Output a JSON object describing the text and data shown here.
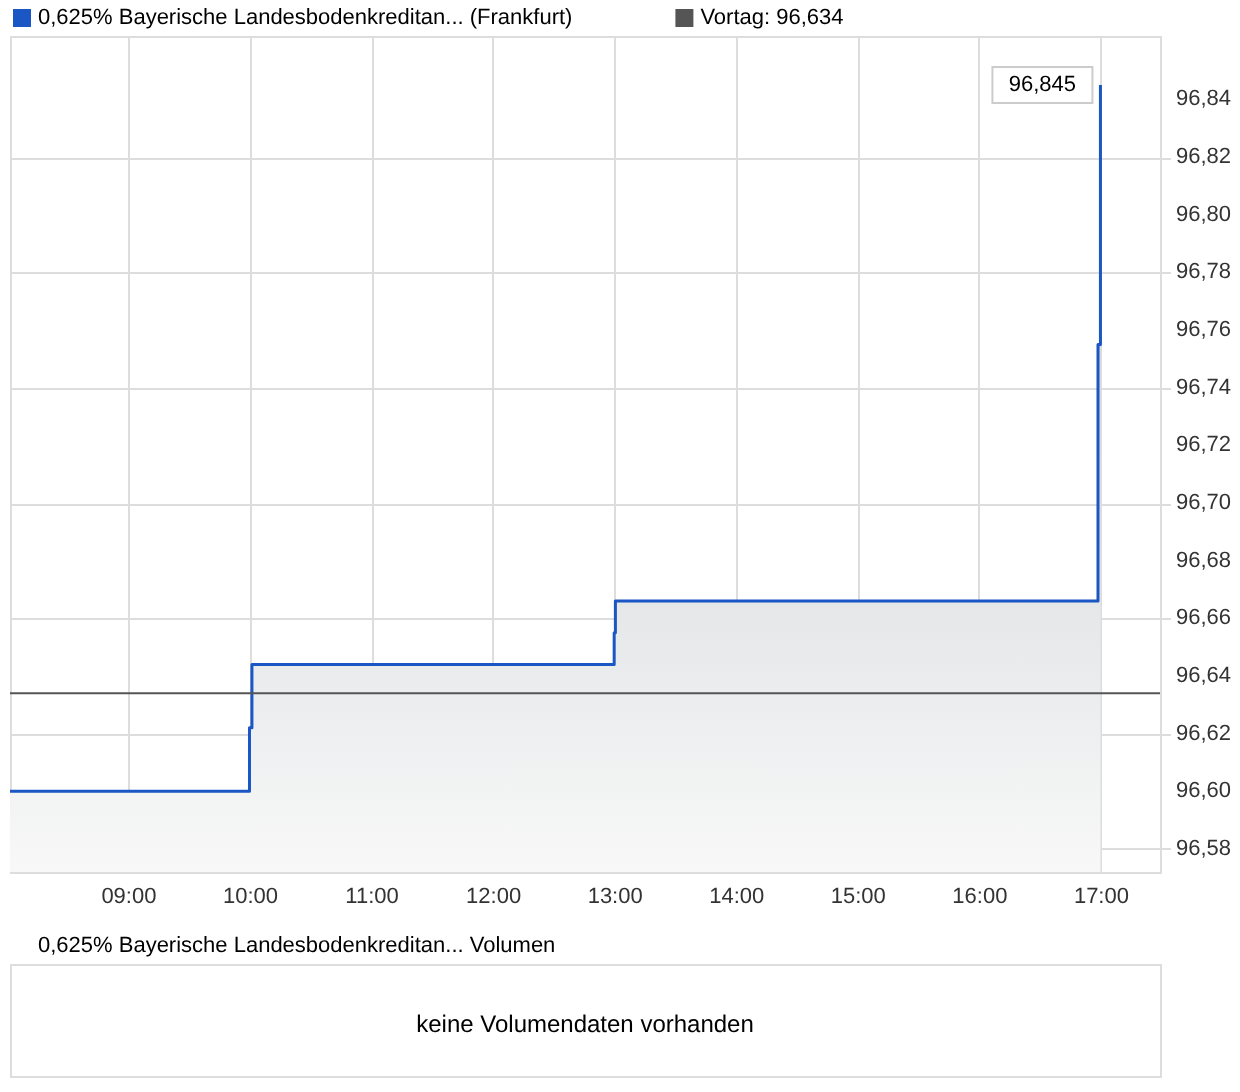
{
  "chart_data": [
    {
      "type": "area",
      "legend": "top left",
      "grid": true,
      "series": [
        {
          "name": "0,625% Bayerische Landesbodenkreditan... (Frankfurt)",
          "color": "#1a56c4",
          "x": [
            8.03,
            10.0,
            10.0,
            10.02,
            10.02,
            13.0,
            13.0,
            13.01,
            13.01,
            16.98,
            16.98,
            17.0,
            17.0
          ],
          "values": [
            96.6,
            96.6,
            96.622,
            96.622,
            96.644,
            96.644,
            96.655,
            96.655,
            96.666,
            96.666,
            96.755,
            96.755,
            96.845
          ]
        }
      ],
      "ref_lines": [
        {
          "axis": "y",
          "value": 96.634,
          "label": "Vortag: 96,634",
          "color": "#555555"
        }
      ],
      "annotations": [
        {
          "text": "96,845",
          "x": 17.0,
          "y": 96.845
        }
      ],
      "xlim": [
        8.03,
        17.49
      ],
      "xticks": [
        {
          "value": 9,
          "label": "09:00"
        },
        {
          "value": 10,
          "label": "10:00"
        },
        {
          "value": 11,
          "label": "11:00"
        },
        {
          "value": 12,
          "label": "12:00"
        },
        {
          "value": 13,
          "label": "13:00"
        },
        {
          "value": 14,
          "label": "14:00"
        },
        {
          "value": 15,
          "label": "15:00"
        },
        {
          "value": 16,
          "label": "16:00"
        },
        {
          "value": 17,
          "label": "17:00"
        }
      ],
      "ylim": [
        96.572,
        96.862
      ],
      "yticks": [
        {
          "value": 96.58,
          "label": "96,58"
        },
        {
          "value": 96.6,
          "label": "96,60"
        },
        {
          "value": 96.62,
          "label": "96,62"
        },
        {
          "value": 96.64,
          "label": "96,64"
        },
        {
          "value": 96.66,
          "label": "96,66"
        },
        {
          "value": 96.68,
          "label": "96,68"
        },
        {
          "value": 96.7,
          "label": "96,70"
        },
        {
          "value": 96.72,
          "label": "96,72"
        },
        {
          "value": 96.74,
          "label": "96,74"
        },
        {
          "value": 96.76,
          "label": "96,76"
        },
        {
          "value": 96.78,
          "label": "96,78"
        },
        {
          "value": 96.8,
          "label": "96,80"
        },
        {
          "value": 96.82,
          "label": "96,82"
        },
        {
          "value": 96.84,
          "label": "96,84"
        }
      ]
    },
    {
      "type": "other",
      "title": "0,625% Bayerische Landesbodenkreditan... Volumen",
      "annotations": [
        "keine Volumendaten vorhanden"
      ]
    }
  ]
}
